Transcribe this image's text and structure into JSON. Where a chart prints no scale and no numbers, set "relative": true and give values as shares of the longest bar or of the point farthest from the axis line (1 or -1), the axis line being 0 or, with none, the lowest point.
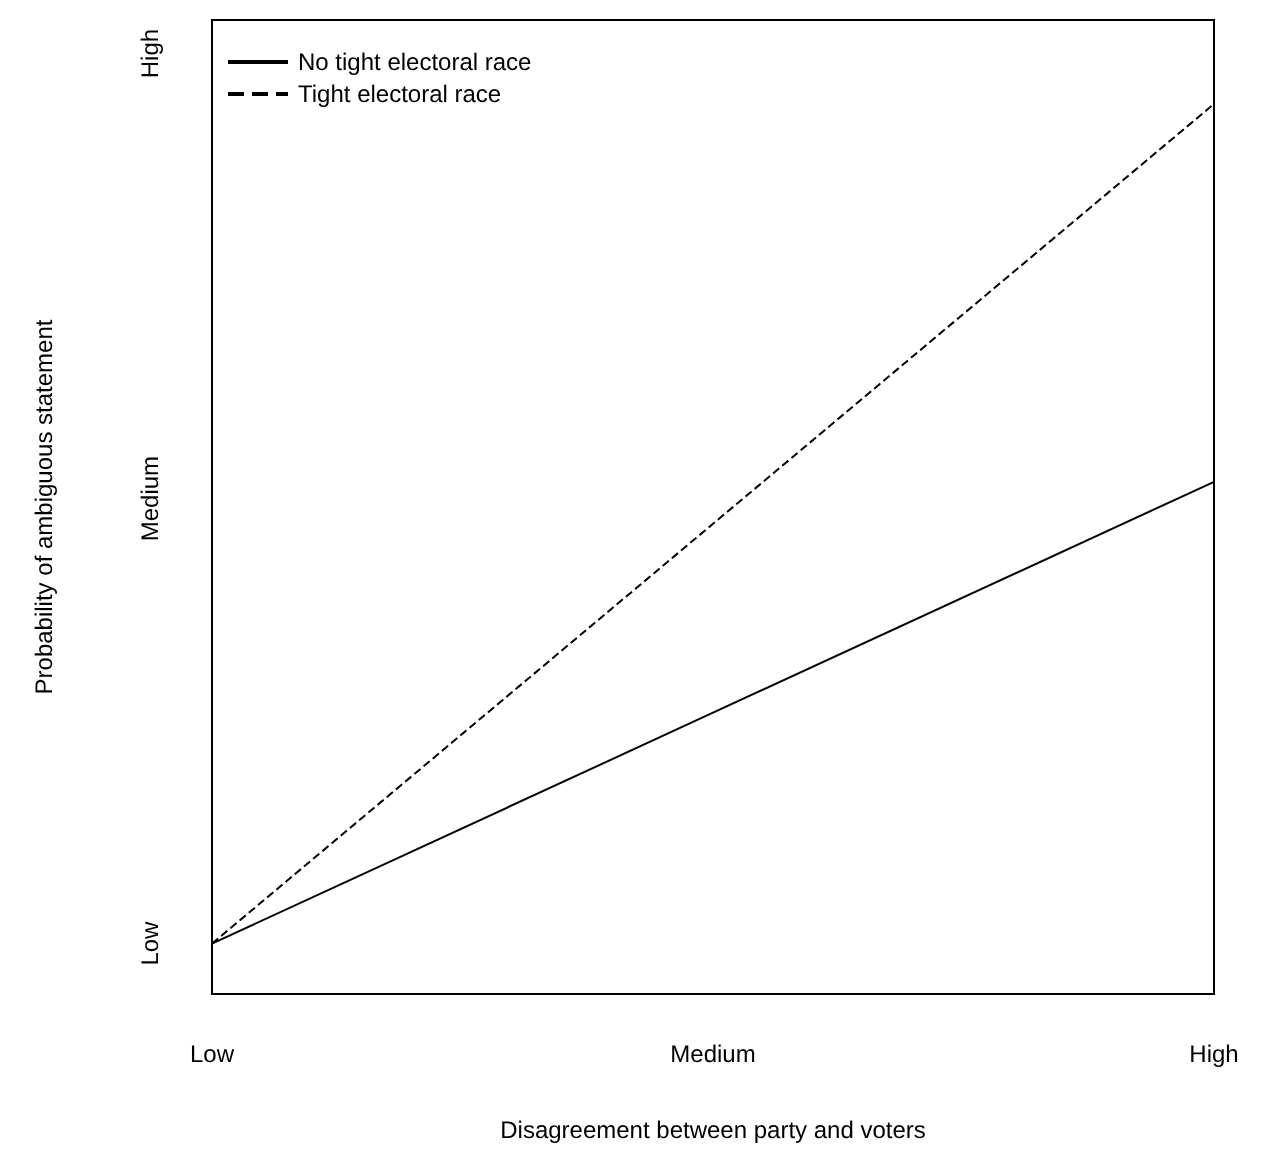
{
  "chart_data": {
    "type": "line",
    "xlabel": "Disagreement between party and voters",
    "ylabel": "Probability of ambiguous statement",
    "categories": [
      "Low",
      "Medium",
      "High"
    ],
    "relative": true,
    "series": [
      {
        "name": "No tight electoral race",
        "color": "#000000",
        "line_style": "solid",
        "values": [
          0,
          0.275,
          0.55
        ]
      },
      {
        "name": "Tight electoral race",
        "color": "#000000",
        "line_style": "dashed",
        "values": [
          0,
          0.5,
          1
        ]
      }
    ],
    "annotations": [
      "Low",
      "Medium",
      "High"
    ],
    "legend": "top left",
    "grid": false,
    "marker": "none"
  }
}
